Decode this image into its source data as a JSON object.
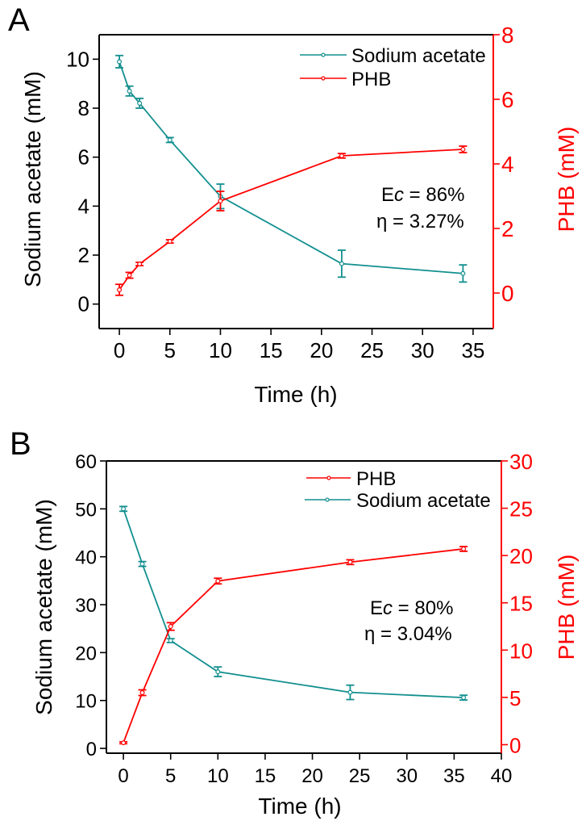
{
  "colors": {
    "acetate": "#138f8f",
    "phb": "#ff0000",
    "axis": "#000000"
  },
  "chart_data": [
    {
      "panel_label": "A",
      "type": "line",
      "xlabel": "Time (h)",
      "ylabel_left": "Sodium acetate (mM)",
      "ylabel_right": "PHB (mM)",
      "xlim": [
        -2,
        37
      ],
      "ylim_left": [
        -1,
        11
      ],
      "ylim_right": [
        -1.1,
        8
      ],
      "xticks": [
        0,
        5,
        10,
        15,
        20,
        25,
        30,
        35
      ],
      "yticks_left": [
        0,
        2,
        4,
        6,
        8,
        10
      ],
      "yticks_right": [
        0,
        2,
        4,
        6,
        8
      ],
      "legend_placement": "top-right",
      "legend": [
        "Sodium acetate",
        "PHB"
      ],
      "annotation": {
        "ec_prefix": "E",
        "ec_italic": "c",
        "ec_rest": " = 86%",
        "eta": "η = 3.27%"
      },
      "series": [
        {
          "name": "Sodium acetate",
          "axis": "left",
          "x": [
            0,
            1,
            2,
            5,
            10,
            22,
            34
          ],
          "y": [
            9.9,
            8.7,
            8.2,
            6.7,
            4.4,
            1.65,
            1.25
          ],
          "err": [
            0.25,
            0.2,
            0.2,
            0.1,
            0.5,
            0.55,
            0.35
          ]
        },
        {
          "name": "PHB",
          "axis": "right",
          "x": [
            0,
            1,
            2,
            5,
            10,
            22,
            34
          ],
          "y": [
            0.1,
            0.55,
            0.9,
            1.6,
            2.85,
            4.25,
            4.45
          ],
          "err": [
            0.17,
            0.09,
            0.05,
            0.05,
            0.3,
            0.07,
            0.1
          ]
        }
      ]
    },
    {
      "panel_label": "B",
      "type": "line",
      "xlabel": "Time (h)",
      "ylabel_left": "Sodium acetate (mM)",
      "ylabel_right": "PHB (mM)",
      "xlim": [
        -1.8,
        40
      ],
      "ylim_left": [
        -1,
        60
      ],
      "ylim_right": [
        -0.9,
        30
      ],
      "xticks": [
        0,
        5,
        10,
        15,
        20,
        25,
        30,
        35,
        40
      ],
      "yticks_left": [
        0,
        10,
        20,
        30,
        40,
        50,
        60
      ],
      "yticks_right": [
        0,
        5,
        10,
        15,
        20,
        25,
        30
      ],
      "legend_placement": "top-right",
      "legend": [
        "PHB",
        "Sodium acetate"
      ],
      "annotation": {
        "ec_prefix": "E",
        "ec_italic": "c",
        "ec_rest": " = 80%",
        "eta": "η = 3.04%"
      },
      "series": [
        {
          "name": "Sodium acetate",
          "axis": "left",
          "x": [
            0,
            2,
            5,
            10,
            24,
            36
          ],
          "y": [
            50,
            38.5,
            22.5,
            16,
            11.7,
            10.6
          ],
          "err": [
            0.5,
            0.5,
            0.4,
            1.0,
            1.5,
            0.5
          ]
        },
        {
          "name": "PHB",
          "axis": "right",
          "x": [
            0,
            2,
            5,
            10,
            24,
            36
          ],
          "y": [
            0.2,
            5.5,
            12.5,
            17.3,
            19.3,
            20.7
          ],
          "err": [
            0.1,
            0.3,
            0.4,
            0.3,
            0.25,
            0.25
          ]
        }
      ]
    }
  ]
}
